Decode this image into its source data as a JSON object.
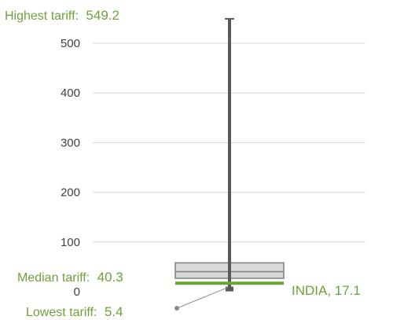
{
  "chart_data": {
    "type": "box",
    "yticks": [
      0,
      100,
      200,
      300,
      400,
      500
    ],
    "ylim": [
      0,
      549.2
    ],
    "grid": true,
    "stats": {
      "max": 549.2,
      "median": 40.3,
      "min": 5.4,
      "q1": 27,
      "q3": 58
    },
    "highlight": {
      "name": "INDIA",
      "value": 17.1
    },
    "annotations": {
      "highest": {
        "label": "Highest tariff:",
        "value": "549.2"
      },
      "median": {
        "label": "Median tariff:",
        "value": "40.3"
      },
      "lowest": {
        "label": "Lowest tariff:",
        "value": "5.4"
      },
      "india": {
        "text": "INDIA, 17.1"
      }
    },
    "colors": {
      "whisker": "#595959",
      "box_fill": "#d9d9d9",
      "box_stroke": "#7f7f7f",
      "highlight": "#70a03a",
      "grid": "#d9d9d9",
      "text": "#404040"
    }
  }
}
